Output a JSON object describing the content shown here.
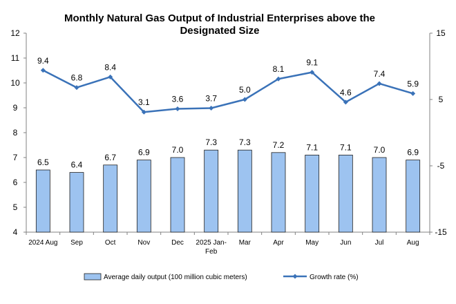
{
  "chart_data": {
    "type": "bar",
    "title": "Monthly Natural Gas Output of Industrial Enterprises above the Designated Size",
    "categories": [
      "2024 Aug",
      "Sep",
      "Oct",
      "Nov",
      "Dec",
      "2025 Jan-Feb",
      "Mar",
      "Apr",
      "May",
      "Jun",
      "Jul",
      "Aug"
    ],
    "series": [
      {
        "name": "Average daily output (100 million cubic meters)",
        "type": "bar",
        "axis": "left",
        "color": "#9DC3F0",
        "values": [
          6.5,
          6.4,
          6.7,
          6.9,
          7.0,
          7.3,
          7.3,
          7.2,
          7.1,
          7.1,
          7.0,
          6.9
        ]
      },
      {
        "name": "Growth rate (%)",
        "type": "line",
        "axis": "right",
        "color": "#3A72B8",
        "values": [
          9.4,
          6.8,
          8.4,
          3.1,
          3.6,
          3.7,
          5.0,
          8.1,
          9.1,
          4.6,
          7.4,
          5.9
        ]
      }
    ],
    "y_left": {
      "min": 4,
      "max": 12,
      "ticks": [
        4,
        5,
        6,
        7,
        8,
        9,
        10,
        11,
        12
      ]
    },
    "y_right": {
      "min": -15,
      "max": 15,
      "ticks": [
        -15,
        -5,
        5,
        15
      ]
    },
    "grid": false,
    "legend_position": "bottom"
  }
}
